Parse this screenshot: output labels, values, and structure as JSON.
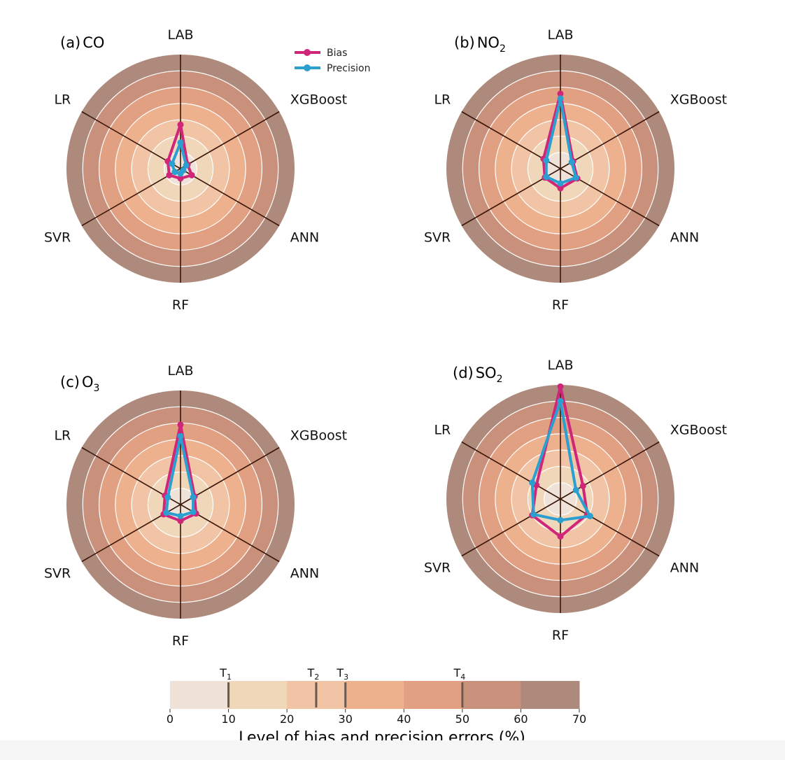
{
  "chart_data": [
    {
      "type": "radar",
      "label": "(a)",
      "pollutant": "CO",
      "subscript": "",
      "axes": [
        "LAB",
        "XGBoost",
        "ANN",
        "RF",
        "SVR",
        "LR"
      ],
      "rlim": [
        0,
        70
      ],
      "series": [
        {
          "name": "Bias",
          "values": [
            27,
            5,
            8,
            6,
            8,
            9
          ]
        },
        {
          "name": "Precision",
          "values": [
            16,
            4,
            2,
            3,
            4,
            6
          ]
        }
      ]
    },
    {
      "type": "radar",
      "label": "(b)",
      "pollutant": "NO",
      "subscript": "2",
      "axes": [
        "LAB",
        "XGBoost",
        "ANN",
        "RF",
        "SVR",
        "LR"
      ],
      "rlim": [
        0,
        70
      ],
      "series": [
        {
          "name": "Bias",
          "values": [
            46,
            9,
            12,
            12,
            11,
            12
          ]
        },
        {
          "name": "Precision",
          "values": [
            43,
            8,
            11,
            9,
            10,
            10
          ]
        }
      ]
    },
    {
      "type": "radar",
      "label": "(c)",
      "pollutant": "O",
      "subscript": "3",
      "axes": [
        "LAB",
        "XGBoost",
        "ANN",
        "RF",
        "SVR",
        "LR"
      ],
      "rlim": [
        0,
        70
      ],
      "series": [
        {
          "name": "Bias",
          "values": [
            49,
            10,
            11,
            10,
            12,
            11
          ]
        },
        {
          "name": "Precision",
          "values": [
            42,
            9,
            9,
            7,
            10,
            9
          ]
        }
      ]
    },
    {
      "type": "radar",
      "label": "(d)",
      "pollutant": "SO",
      "subscript": "2",
      "axes": [
        "LAB",
        "XGBoost",
        "ANN",
        "RF",
        "SVR",
        "LR"
      ],
      "rlim": [
        0,
        70
      ],
      "series": [
        {
          "name": "Bias",
          "values": [
            69,
            16,
            19,
            23,
            20,
            17
          ]
        },
        {
          "name": "Precision",
          "values": [
            60,
            11,
            21,
            13,
            19,
            20
          ]
        }
      ]
    }
  ],
  "legend": {
    "entries": [
      {
        "name": "Bias",
        "color": "#d0267a"
      },
      {
        "name": "Precision",
        "color": "#2a9fd0"
      }
    ]
  },
  "colorbar": {
    "title": "Level of bias and precision errors (%)",
    "bounds": [
      0,
      10,
      20,
      30,
      40,
      50,
      60,
      70
    ],
    "tick_labels": [
      "0",
      "10",
      "20",
      "30",
      "40",
      "50",
      "60",
      "70"
    ],
    "colors": [
      "#efe3d9",
      "#f0d7ba",
      "#f0c4a4",
      "#eeb18e",
      "#e2a083",
      "#c9917c",
      "#ad8a7c"
    ],
    "thresholds": [
      {
        "label": "T",
        "sub": "1",
        "value": 10
      },
      {
        "label": "T",
        "sub": "2",
        "value": 25
      },
      {
        "label": "T",
        "sub": "3",
        "value": 30
      },
      {
        "label": "T",
        "sub": "4",
        "value": 50
      }
    ]
  }
}
